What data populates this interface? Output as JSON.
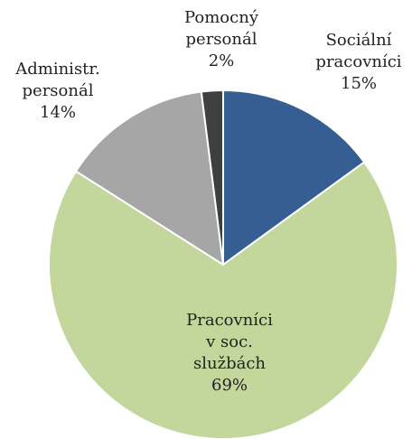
{
  "chart_data": {
    "type": "pie",
    "slices": [
      {
        "label_lines": [
          "Sociální",
          "pracovníci"
        ],
        "value": 15,
        "value_label": "15%",
        "color": "#355E92"
      },
      {
        "label_lines": [
          "Pracovníci",
          "v soc.",
          "službách"
        ],
        "value": 69,
        "value_label": "69%",
        "color": "#C3D69B"
      },
      {
        "label_lines": [
          "Administr.",
          "personál"
        ],
        "value": 14,
        "value_label": "14%",
        "color": "#A6A6A6"
      },
      {
        "label_lines": [
          "Pomocný",
          "personál"
        ],
        "value": 2,
        "value_label": "2%",
        "color": "#3F3F3F"
      }
    ],
    "start_angle": "12 o'clock",
    "direction": "clockwise",
    "legend": "none"
  }
}
